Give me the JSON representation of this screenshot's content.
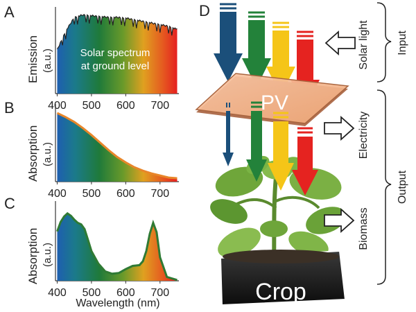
{
  "panels": {
    "A": {
      "letter": "A",
      "ylabel_main": "Emission",
      "ylabel_unit": "(a.u.)",
      "inner_text_1": "Solar spectrum",
      "inner_text_2": "at ground level",
      "xticks": [
        "400",
        "500",
        "600",
        "700"
      ]
    },
    "B": {
      "letter": "B",
      "ylabel_main": "Absorption",
      "ylabel_unit": "(a.u.)",
      "xticks": [
        "400",
        "500",
        "600",
        "700"
      ]
    },
    "C": {
      "letter": "C",
      "ylabel_main": "Absorption",
      "ylabel_unit": "(a.u.)",
      "xticks": [
        "400",
        "500",
        "600",
        "700"
      ],
      "xlabel": "Wavelength (nm)"
    },
    "D": {
      "letter": "D",
      "pv_label": "PV",
      "crop_label": "Crop",
      "side_labels": {
        "solar_light": "Solar light",
        "electricity": "Electricity",
        "biomass": "Biomass",
        "input": "Input",
        "output": "Output"
      },
      "arrow_colors": [
        "#1b4f7a",
        "#23823a",
        "#f5c518",
        "#e52320"
      ]
    }
  },
  "chart_data": [
    {
      "type": "area",
      "panel": "A",
      "x": [
        400,
        425,
        450,
        475,
        500,
        525,
        550,
        575,
        600,
        625,
        650,
        675,
        700,
        725,
        750
      ],
      "y": [
        0.55,
        0.78,
        0.95,
        0.98,
        0.97,
        0.96,
        0.95,
        0.95,
        0.94,
        0.92,
        0.9,
        0.88,
        0.86,
        0.84,
        0.8
      ],
      "xlim": [
        395,
        755
      ]
    },
    {
      "type": "area",
      "panel": "B",
      "x": [
        400,
        425,
        450,
        475,
        500,
        525,
        550,
        575,
        600,
        625,
        650,
        675,
        700,
        725,
        750
      ],
      "y": [
        1.0,
        0.94,
        0.87,
        0.78,
        0.68,
        0.57,
        0.46,
        0.36,
        0.28,
        0.21,
        0.16,
        0.12,
        0.09,
        0.06,
        0.05
      ],
      "xlim": [
        395,
        755
      ]
    },
    {
      "type": "area",
      "panel": "C",
      "x": [
        400,
        410,
        420,
        430,
        440,
        450,
        460,
        470,
        480,
        490,
        500,
        520,
        540,
        560,
        580,
        600,
        620,
        640,
        650,
        660,
        670,
        680,
        690,
        700,
        720,
        750
      ],
      "y": [
        0.63,
        0.75,
        0.82,
        0.86,
        0.83,
        0.78,
        0.74,
        0.72,
        0.66,
        0.52,
        0.38,
        0.22,
        0.12,
        0.09,
        0.1,
        0.15,
        0.19,
        0.2,
        0.25,
        0.38,
        0.6,
        0.74,
        0.62,
        0.3,
        0.05,
        0.01
      ],
      "xlim": [
        395,
        755
      ]
    }
  ]
}
